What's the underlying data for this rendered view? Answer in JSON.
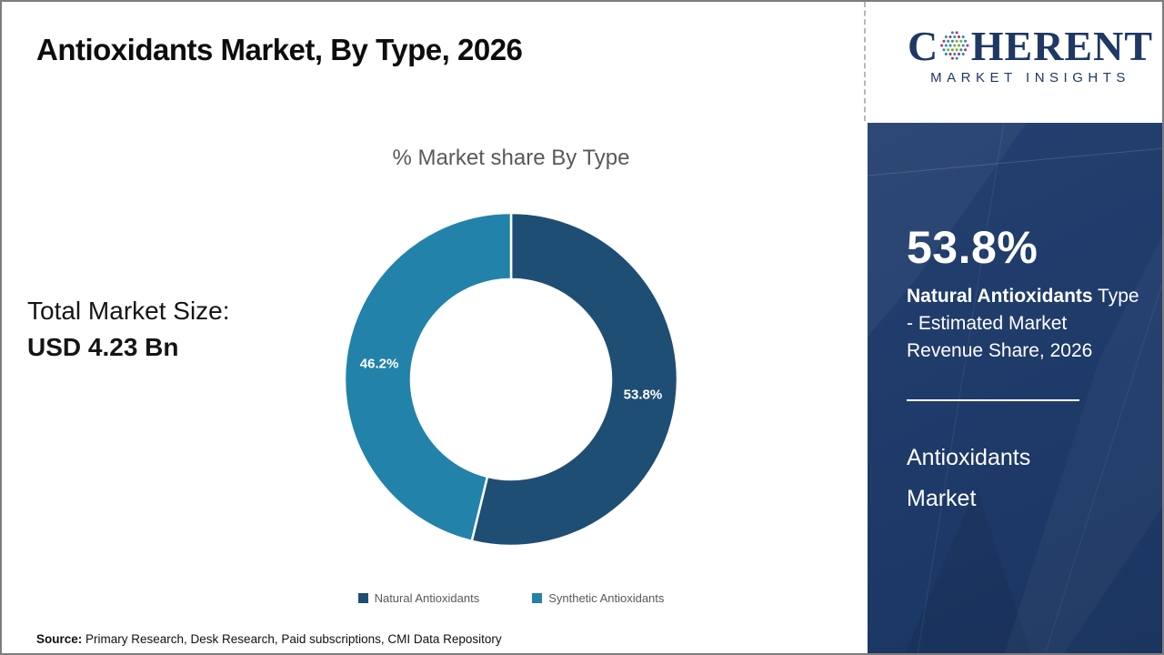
{
  "header": {
    "title": "Antioxidants Market, By Type, 2026"
  },
  "logo": {
    "prefix": "C",
    "suffix": "HERENT",
    "subtitle": "MARKET INSIGHTS",
    "color": "#1F3864"
  },
  "summary": {
    "label": "Total Market Size:",
    "value": "USD 4.23 Bn"
  },
  "chart_data": {
    "type": "pie",
    "donut": true,
    "title": "% Market share By Type",
    "categories": [
      "Natural Antioxidants",
      "Synthetic Antioxidants"
    ],
    "values": [
      53.8,
      46.2
    ],
    "labels": [
      "53.8%",
      "46.2%"
    ],
    "colors": [
      "#1F4E74",
      "#2282AA"
    ],
    "start_angle_deg": 0,
    "legend_position": "bottom"
  },
  "side_panel": {
    "headline": "53.8%",
    "description_bold": "Natural Antioxidants",
    "description_rest": " Type - Estimated Market Revenue Share, 2026",
    "footer_title": "Antioxidants Market",
    "background_color": "#1E3A69"
  },
  "footer": {
    "source_label": "Source:",
    "source_text": " Primary Research, Desk Research, Paid subscriptions, CMI Data Repository"
  }
}
